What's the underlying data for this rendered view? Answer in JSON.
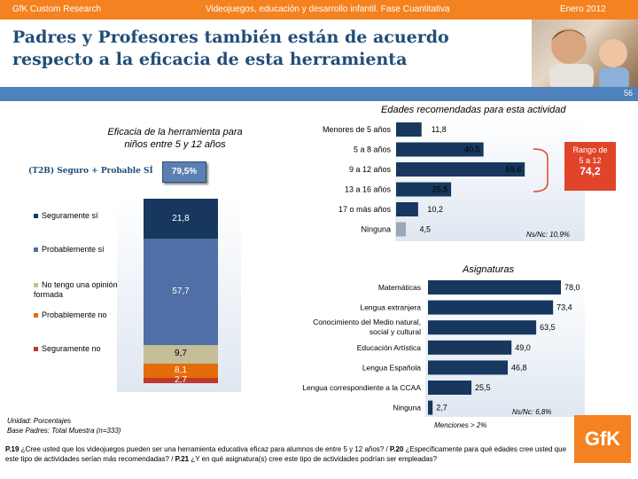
{
  "header": {
    "left": "GfK Custom Research",
    "center": "Videojuegos, educación y desarrollo infantil. Fase Cuantitativa",
    "right": "Enero 2012"
  },
  "title": {
    "line1": "Padres y Profesores también están de acuerdo",
    "line2": "respecto a la eficacia de esta herramienta"
  },
  "slide_number": "56",
  "efficacy": {
    "title_line1": "Eficacia de la herramienta para",
    "title_line2": "niños entre 5 y 12 años",
    "t2b_label": "(T2B) Seguro + Probable SÍ",
    "t2b_value": "79,5%",
    "legend": [
      {
        "label": "Seguramente sí",
        "color": "#17375e"
      },
      {
        "label": "Probablemente sí",
        "color": "#4f6fa6"
      },
      {
        "label": "No tengo una opinión formada",
        "color": "#c4bd97"
      },
      {
        "label": "Probablemente no",
        "color": "#e46c0a"
      },
      {
        "label": "Seguramente no",
        "color": "#c0392b"
      }
    ],
    "stack_labels": [
      "21,8",
      "57,7",
      "9,7",
      "8,1",
      "2,7"
    ]
  },
  "ages": {
    "title": "Edades recomendadas para esta actividad",
    "rango_label_line1": "Rango de",
    "rango_label_line2": "5 a 12",
    "rango_value": "74,2",
    "ns_nc": "Ns/Nc: 10,9%"
  },
  "subjects": {
    "title": "Asignaturas",
    "ns_nc": "Ns/Nc: 6,8%",
    "footnote": "Menciones > 2%"
  },
  "unidad": {
    "line1": "Unidad: Porcentajes",
    "line2": "Base Padres: Total Muestra (n=333)"
  },
  "footer": {
    "p19_bold": "P.19",
    "p19_text": " ¿Cree usted que los videojuegos pueden ser una herramienta educativa eficaz para alumnos de entre 5 y 12 años? / ",
    "p20_bold": "P.20",
    "p20_text": " ¿Específicamente para qué edades cree usted que este tipo de actividades serían más recomendadas? / ",
    "p21_bold": "P.21",
    "p21_text": " ¿Y en qué asignatura(s) cree este tipo de actividades podrían ser empleadas?"
  },
  "logo": "GfK",
  "colors": {
    "orange": "#f58220",
    "navy": "#17375e",
    "blue": "#4f81bd",
    "title": "#1f4e79"
  },
  "chart_data": [
    {
      "type": "bar",
      "title": "Edades recomendadas para esta actividad",
      "categories": [
        "Menores de 5 años",
        "5 a 8 años",
        "9 a 12 años",
        "13 a 16 años",
        "17 o más años",
        "Ninguna"
      ],
      "values": [
        11.8,
        40.5,
        59.6,
        25.5,
        10.2,
        4.5
      ],
      "labels": [
        "11,8",
        "40,5",
        "59,6",
        "25,5",
        "10,2",
        "4,5"
      ],
      "xlim": [
        0,
        78
      ]
    },
    {
      "type": "bar",
      "title": "Asignaturas",
      "categories": [
        "Matemáticas",
        "Lengua extranjera",
        "Conocimiento del Medio natural, social y cultural",
        "Educación Artística",
        "Lengua Española",
        "Lengua correspondiente a la CCAA",
        "Ninguna"
      ],
      "values": [
        78.0,
        73.4,
        63.5,
        49.0,
        46.8,
        25.5,
        2.7
      ],
      "labels": [
        "78,0",
        "73,4",
        "63,5",
        "49,0",
        "46,8",
        "25,5",
        "2,7"
      ],
      "xlim": [
        0,
        78
      ]
    },
    {
      "type": "bar",
      "title": "Eficacia de la herramienta para niños entre 5 y 12 años",
      "stacked": true,
      "categories": [
        "Seguramente sí",
        "Probablemente sí",
        "No tengo una opinión formada",
        "Probablemente no",
        "Seguramente no"
      ],
      "values": [
        21.8,
        57.7,
        9.7,
        8.1,
        2.7
      ],
      "ylim": [
        0,
        100
      ]
    }
  ]
}
